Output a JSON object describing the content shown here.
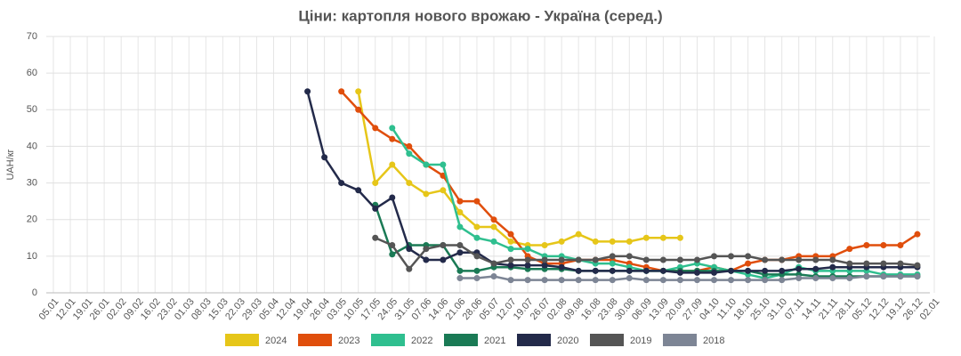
{
  "chart_data": {
    "type": "line",
    "title": "Ціни: картопля нового врожаю - Україна (серед.)",
    "y_label": "UAH/кг",
    "categories": [
      "05.01",
      "12.01",
      "19.01",
      "26.01",
      "02.02",
      "09.02",
      "16.02",
      "23.02",
      "01.03",
      "08.03",
      "15.03",
      "22.03",
      "29.03",
      "05.04",
      "12.04",
      "19.04",
      "26.04",
      "03.05",
      "10.05",
      "17.05",
      "24.05",
      "31.05",
      "07.06",
      "14.06",
      "21.06",
      "28.06",
      "05.07",
      "12.07",
      "19.07",
      "26.07",
      "02.08",
      "09.08",
      "16.08",
      "23.08",
      "30.08",
      "06.09",
      "13.09",
      "20.09",
      "27.09",
      "04.10",
      "11.10",
      "18.10",
      "25.10",
      "31.10",
      "07.11",
      "14.11",
      "21.11",
      "28.11",
      "05.12",
      "12.12",
      "19.12",
      "26.12",
      "02.01"
    ],
    "ylim": [
      0,
      70
    ],
    "yticks": [
      0,
      10,
      20,
      30,
      40,
      50,
      60,
      70
    ],
    "grid": true,
    "legend": "bottom",
    "series": [
      {
        "name": "2024",
        "color": "#e6c619",
        "values": [
          null,
          null,
          null,
          null,
          null,
          null,
          null,
          null,
          null,
          null,
          null,
          null,
          null,
          null,
          null,
          null,
          null,
          null,
          55,
          30,
          35,
          30,
          27,
          28,
          22,
          18,
          18,
          14,
          13,
          13,
          14,
          16,
          14,
          14,
          14,
          15,
          15,
          15,
          null,
          null,
          null,
          null,
          null,
          null,
          null,
          null,
          null,
          null,
          null,
          null,
          null,
          null,
          null
        ]
      },
      {
        "name": "2023",
        "color": "#e04e0c",
        "values": [
          null,
          null,
          null,
          null,
          null,
          null,
          null,
          null,
          null,
          null,
          null,
          null,
          null,
          null,
          null,
          null,
          null,
          55,
          50,
          45,
          42,
          40,
          35,
          32,
          25,
          25,
          20,
          16,
          10,
          8,
          8,
          9,
          9,
          9,
          8,
          7,
          6,
          6,
          6,
          7,
          6,
          8,
          9,
          9,
          10,
          10,
          10,
          12,
          13,
          13,
          13,
          16,
          null
        ]
      },
      {
        "name": "2022",
        "color": "#2fbf8f",
        "values": [
          null,
          null,
          null,
          null,
          null,
          null,
          null,
          null,
          null,
          null,
          null,
          null,
          null,
          null,
          null,
          null,
          null,
          null,
          null,
          null,
          45,
          38,
          35,
          35,
          18,
          15,
          14,
          12,
          12,
          10,
          10,
          9,
          8,
          8,
          7,
          6,
          6,
          7,
          8,
          7,
          6,
          5,
          4,
          5,
          7,
          6,
          6,
          6,
          6,
          5,
          5,
          5,
          null
        ]
      },
      {
        "name": "2021",
        "color": "#1a7a55",
        "values": [
          null,
          null,
          null,
          null,
          null,
          null,
          null,
          null,
          null,
          null,
          null,
          null,
          null,
          null,
          null,
          null,
          null,
          null,
          null,
          24,
          10.5,
          13,
          13,
          13,
          6,
          6,
          7,
          7,
          6.5,
          6.5,
          6.5,
          6,
          6,
          6,
          6,
          6,
          6,
          6,
          6,
          6,
          6,
          6,
          5,
          5,
          5,
          4.5,
          4.5,
          4.5,
          4.5,
          4.5,
          4.5,
          4.5,
          null
        ]
      },
      {
        "name": "2020",
        "color": "#232a4a",
        "values": [
          null,
          null,
          null,
          null,
          null,
          null,
          null,
          null,
          null,
          null,
          null,
          null,
          null,
          null,
          null,
          55,
          37,
          30,
          28,
          23,
          26,
          12,
          9,
          9,
          11,
          11,
          8,
          7.5,
          7.5,
          7.5,
          7,
          6,
          6,
          6,
          6,
          6,
          6,
          5.5,
          5.5,
          5.5,
          6,
          6,
          6,
          6,
          6.5,
          6.5,
          7,
          7,
          7,
          7,
          7,
          7,
          null
        ]
      },
      {
        "name": "2019",
        "color": "#555555",
        "values": [
          null,
          null,
          null,
          null,
          null,
          null,
          null,
          null,
          null,
          null,
          null,
          null,
          null,
          null,
          null,
          null,
          null,
          null,
          null,
          15,
          13,
          6.5,
          12,
          13,
          13,
          10,
          8,
          9,
          9,
          9,
          9,
          9,
          9,
          10,
          10,
          9,
          9,
          9,
          9,
          10,
          10,
          10,
          9,
          9,
          9,
          9,
          9,
          8,
          8,
          8,
          8,
          7.5,
          null
        ]
      },
      {
        "name": "2018",
        "color": "#7d8595",
        "values": [
          null,
          null,
          null,
          null,
          null,
          null,
          null,
          null,
          null,
          null,
          null,
          null,
          null,
          null,
          null,
          null,
          null,
          null,
          null,
          null,
          null,
          null,
          null,
          null,
          4,
          4,
          4.5,
          3.5,
          3.5,
          3.5,
          3.5,
          3.5,
          3.5,
          3.5,
          4,
          3.5,
          3.5,
          3.5,
          3.5,
          3.5,
          3.5,
          3.5,
          3.5,
          3.5,
          4,
          4,
          4,
          4,
          4.5,
          4.5,
          4.5,
          4.5,
          null
        ]
      }
    ]
  }
}
